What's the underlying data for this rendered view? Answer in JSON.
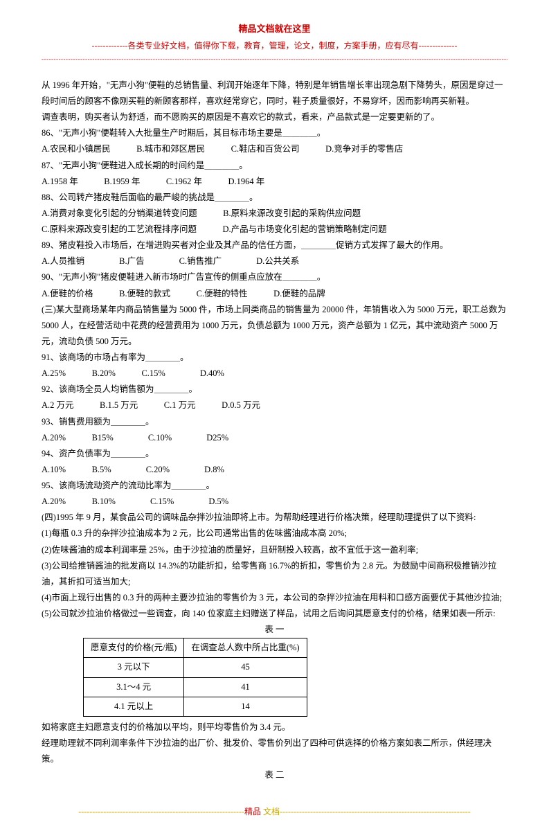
{
  "header": {
    "title": "精品文档就在这里",
    "sub": "-------------各类专业好文档，值得你下载，教育，管理，论文，制度，方案手册，应有尽有--------------",
    "line": "---------------------------------------------------------------------------------------------------------------------------------------------------------------------------------------------------------------------------------------"
  },
  "paras": {
    "p1": "从 1996 年开始，\"无声小狗\"便鞋的总销售量、利润开始逐年下降，特别是年销售增长率出现急剧下降势头，原因是穿过一段时间后的顾客不像刚买鞋的新顾客那样，喜欢经常穿它，同时，鞋子质量很好，不易穿坏，因而影响再买新鞋。",
    "p2": "调查表明，购买者认为舒适，而不愿购买的原因是不喜欢它的款式，看来，产品款式是一定要更新的了。",
    "q86": "86、\"无声小狗\"便鞋转入大批量生产时期后，其目标市场主要是＿＿＿＿。",
    "q86o": "A.农民和小镇居民　　　B.城市和郊区居民　　　C.鞋店和百货公司　　　D.竞争对手的零售店",
    "q87": "87、\"无声小狗\"便鞋进入成长期的时间约是＿＿＿＿。",
    "q87o": "A.1958 年　　　B.1959 年　　　C.1962 年　　　D.1964 年",
    "q88": "88、公司转产猪皮鞋后面临的最严峻的挑战是＿＿＿＿。",
    "q88o1": "A.消费对象变化引起的分销渠道转变问题　　　B.原料来源改变引起的采购供应问题",
    "q88o2": "C.原料来源改变引起的工艺流程排序问题　　　D.产品与市场变化引起的营销策略制定问题",
    "q89": "89、猪皮鞋投入市场后，在增进购买者对企业及其产品的信任方面，＿＿＿＿促销方式发挥了最大的作用。",
    "q89o": "A.人员推销　　　　B.广告　　　　C.销售推广　　　　D.公共关系",
    "q90": "90、\"无声小狗\"猪皮便鞋进入新市场时广告宣传的侧重点应放在＿＿＿＿。",
    "q90o": "A.便鞋的价格　　　B.便鞋的款式　　　C.便鞋的特性　　　D.便鞋的品牌",
    "case3": "(三)某大型商场某年内商品销售量为 5000 件，市场上同类商品的销售量为 20000 件，年销售收入为 5000 万元，职工总数为 5000 人，在经营活动中花费的经营费用为 1000 万元，负债总额为 1000 万元，资产总额为 1 亿元，其中流动资产 5000 万元，流动负债 500 万元。",
    "q91": "91、该商场的市场占有率为＿＿＿＿。",
    "q91o": "A.25%　　　B.20%　　　C.15%　　　　D.40%",
    "q92": "92、该商场全员人均销售额为＿＿＿＿。",
    "q92o": "A.2 万元　　　B.1.5 万元　　　C.1 万元　　　D.0.5 万元",
    "q93": "93、销售费用额为＿＿＿＿。",
    "q93o": "A.20%　　　B15%　　　　C.10%　　　　D25%",
    "q94": "94、资产负债率为＿＿＿＿。",
    "q94o": "A.10%　　　B.5%　　　　C.20%　　　　D.8%",
    "q95": "95、该商场流动资产的流动比率为＿＿＿＿。",
    "q95o": "A.20%　　　B.10%　　　　C.15%　　　　D.5%",
    "case4": "(四)1995 年 9 月，某食品公司的调味品杂拌沙拉油即将上市。为帮助经理进行价格决策，经理助理提供了以下资料:",
    "c4_1": "(1)每瓶 0.3 升的杂拌沙拉油成本为 2 元，比公司通常出售的佐味酱油成本高 20%;",
    "c4_2": "(2)佐味酱油的成本利润率是 25%，由于沙拉油的质量好，且研制投入较高，故不宜低于这一盈利率;",
    "c4_3": "(3)公司给推销酱油的批发商以 14.3%的功能折扣，给零售商 16.7%的折扣，零售价为 2.8 元。为鼓励中间商积极推销沙拉油，其折扣可适当加大;",
    "c4_4": "(4)市面上现行出售的 0.3 升的两种主要沙拉油的零售价为 3 元，本公司的杂拌沙拉油在用料和口感方面要优于其他沙拉油;",
    "c4_5": "(5)公司就沙拉油价格做过一些调查，向 140 位家庭主妇赠送了样品，试用之后询问其愿意支付的价格，结果如表一所示:",
    "tbl1_caption": "表 一",
    "after_tbl1": "如将家庭主妇愿意支付的价格加以平均，则平均零售价为 3.4 元。",
    "after_tbl1_2": "经理助理就不同利润率条件下沙拉油的出厂价、批发价、零售价列出了四种可供选择的价格方案如表二所示，供经理决策。",
    "tbl2_caption": "表 二"
  },
  "table1": {
    "headers": [
      "愿意支付的价格(元/瓶)",
      "在调查总人数中所占比重(%)"
    ],
    "rows": [
      [
        "3 元以下",
        "45"
      ],
      [
        "3.1～4 元",
        "41"
      ],
      [
        "4.1 元以上",
        "14"
      ]
    ]
  },
  "footer": {
    "dashes_left": "------------------------------------------------------------",
    "text1": "精品",
    "text2": " 文档",
    "dashes_right": "---------------------------------------------------------------------"
  }
}
